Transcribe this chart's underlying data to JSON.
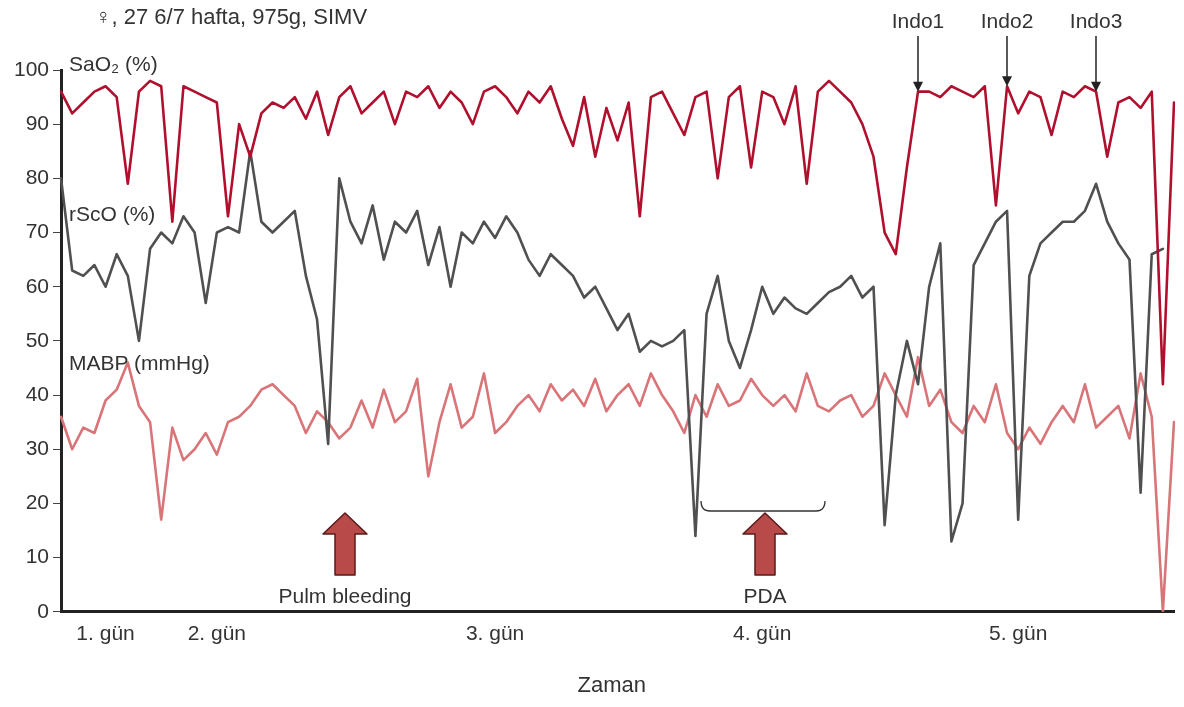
{
  "chart_data": {
    "type": "line",
    "title": "♀, 27 6/7 hafta, 975g, SIMV",
    "xlabel": "Zaman",
    "categories": [
      null,
      null,
      null,
      null,
      "1. gün",
      null,
      null,
      null,
      null,
      null,
      null,
      null,
      null,
      null,
      "2. gün",
      null,
      null,
      null,
      null,
      null,
      null,
      null,
      null,
      null,
      null,
      null,
      null,
      null,
      null,
      null,
      null,
      null,
      null,
      null,
      null,
      null,
      null,
      null,
      null,
      "3. gün",
      null,
      null,
      null,
      null,
      null,
      null,
      null,
      null,
      null,
      null,
      null,
      null,
      null,
      null,
      null,
      null,
      null,
      null,
      null,
      null,
      null,
      null,
      null,
      "4. gün",
      null,
      null,
      null,
      null,
      null,
      null,
      null,
      null,
      null,
      null,
      null,
      null,
      null,
      null,
      null,
      null,
      null,
      null,
      null,
      null,
      null,
      null,
      "5. gün",
      null,
      null,
      null,
      null,
      null,
      null,
      null,
      null,
      null,
      null,
      null,
      null,
      null,
      null
    ],
    "ylim": [
      0,
      100
    ],
    "yticks": [
      0,
      10,
      20,
      30,
      40,
      50,
      60,
      70,
      80,
      90,
      100
    ],
    "grid": false,
    "legend": false,
    "marker": "none",
    "line_style": "solid",
    "series": [
      {
        "name": "SaO₂ (%)",
        "color": "#b0102e",
        "values": [
          96,
          92,
          94,
          96,
          97,
          95,
          79,
          96,
          98,
          97,
          72,
          97,
          96,
          95,
          94,
          73,
          90,
          84,
          92,
          94,
          93,
          95,
          91,
          96,
          88,
          95,
          97,
          92,
          94,
          96,
          90,
          96,
          95,
          97,
          93,
          96,
          94,
          90,
          96,
          97,
          95,
          92,
          96,
          94,
          97,
          91,
          86,
          95,
          84,
          93,
          87,
          94,
          73,
          95,
          96,
          92,
          88,
          95,
          96,
          80,
          95,
          97,
          82,
          96,
          95,
          90,
          97,
          79,
          96,
          98,
          96,
          94,
          90,
          84,
          70,
          66,
          82,
          96,
          96,
          95,
          97,
          96,
          95,
          97,
          75,
          97,
          92,
          96,
          95,
          88,
          96,
          95,
          97,
          96,
          84,
          94,
          95,
          93,
          96,
          42,
          94
        ]
      },
      {
        "name": "rScO (%)",
        "color": "#505050",
        "values": [
          80,
          63,
          62,
          64,
          60,
          66,
          62,
          50,
          67,
          70,
          68,
          73,
          70,
          57,
          70,
          71,
          70,
          85,
          72,
          70,
          72,
          74,
          62,
          54,
          31,
          80,
          72,
          68,
          75,
          65,
          72,
          70,
          74,
          64,
          71,
          60,
          70,
          68,
          72,
          69,
          73,
          70,
          65,
          62,
          66,
          64,
          62,
          58,
          60,
          56,
          52,
          55,
          48,
          50,
          49,
          50,
          52,
          14,
          55,
          62,
          50,
          45,
          52,
          60,
          55,
          58,
          56,
          55,
          57,
          59,
          60,
          62,
          58,
          60,
          16,
          40,
          50,
          42,
          60,
          68,
          13,
          20,
          64,
          68,
          72,
          74,
          17,
          62,
          68,
          70,
          72,
          72,
          74,
          79,
          72,
          68,
          65,
          22,
          66,
          67,
          null
        ]
      },
      {
        "name": "MABP (mmHg)",
        "color": "#d97478",
        "values": [
          36,
          30,
          34,
          33,
          39,
          41,
          46,
          38,
          35,
          17,
          34,
          28,
          30,
          33,
          29,
          35,
          36,
          38,
          41,
          42,
          40,
          38,
          33,
          37,
          35,
          32,
          34,
          39,
          34,
          41,
          35,
          37,
          43,
          25,
          35,
          42,
          34,
          36,
          44,
          33,
          35,
          38,
          40,
          37,
          42,
          39,
          41,
          38,
          43,
          37,
          40,
          42,
          38,
          44,
          40,
          37,
          33,
          40,
          36,
          42,
          38,
          39,
          43,
          40,
          38,
          40,
          37,
          44,
          38,
          37,
          39,
          40,
          36,
          38,
          44,
          40,
          36,
          47,
          38,
          41,
          35,
          33,
          38,
          35,
          42,
          33,
          30,
          34,
          31,
          35,
          38,
          35,
          42,
          34,
          36,
          38,
          32,
          44,
          36,
          0,
          35
        ]
      }
    ],
    "annotations": [
      {
        "text": "Indo1",
        "y": 96
      },
      {
        "text": "Indo2",
        "y": 97
      },
      {
        "text": "Indo3",
        "y": 96
      },
      "Pulm bleeding",
      "PDA"
    ]
  }
}
